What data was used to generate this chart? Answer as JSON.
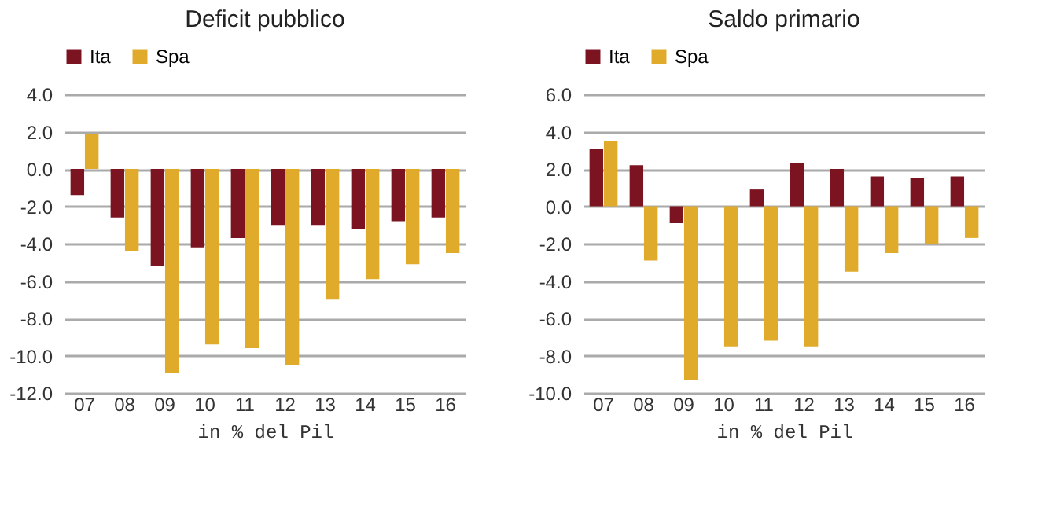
{
  "chart_data": [
    {
      "type": "bar",
      "title": "Deficit pubblico",
      "xlabel": "in % del Pil",
      "categories": [
        "07",
        "08",
        "09",
        "10",
        "11",
        "12",
        "13",
        "14",
        "15",
        "16"
      ],
      "series": [
        {
          "name": "Ita",
          "color": "#7b1420",
          "values": [
            -1.4,
            -2.6,
            -5.2,
            -4.2,
            -3.7,
            -3.0,
            -3.0,
            -3.2,
            -2.8,
            -2.6
          ]
        },
        {
          "name": "Spa",
          "color": "#e0aa2a",
          "values": [
            1.9,
            -4.4,
            -10.9,
            -9.4,
            -9.6,
            -10.5,
            -7.0,
            -5.9,
            -5.1,
            -4.5
          ]
        }
      ],
      "ylim": [
        -12,
        4
      ],
      "yticks": [
        {
          "value": -12,
          "label": "-12.0"
        },
        {
          "value": -10,
          "label": "-10.0"
        },
        {
          "value": -8,
          "label": "-8.0"
        },
        {
          "value": -6,
          "label": "-6.0"
        },
        {
          "value": -4,
          "label": "-4.0"
        },
        {
          "value": -2,
          "label": "-2.0"
        },
        {
          "value": 0,
          "label": "0.0"
        },
        {
          "value": 2,
          "label": "2.0"
        },
        {
          "value": 4,
          "label": "4.0"
        }
      ],
      "grid": "y",
      "legend": "top"
    },
    {
      "type": "bar",
      "title": "Saldo primario",
      "xlabel": "in % del Pil",
      "categories": [
        "07",
        "08",
        "09",
        "10",
        "11",
        "12",
        "13",
        "14",
        "15",
        "16"
      ],
      "series": [
        {
          "name": "Ita",
          "color": "#7b1420",
          "values": [
            3.1,
            2.2,
            -0.9,
            0,
            0.9,
            2.3,
            2.0,
            1.6,
            1.5,
            1.6
          ]
        },
        {
          "name": "Spa",
          "color": "#e0aa2a",
          "values": [
            3.5,
            -2.9,
            -9.3,
            -7.5,
            -7.2,
            -7.5,
            -3.5,
            -2.5,
            -2.0,
            -1.7
          ]
        }
      ],
      "ylim": [
        -10,
        6
      ],
      "yticks": [
        {
          "value": -10,
          "label": "-10.0"
        },
        {
          "value": -8,
          "label": "-8.0"
        },
        {
          "value": -6,
          "label": "-6.0"
        },
        {
          "value": -4,
          "label": "-4.0"
        },
        {
          "value": -2,
          "label": "-2.0"
        },
        {
          "value": 0,
          "label": "0.0"
        },
        {
          "value": 2,
          "label": "2.0"
        },
        {
          "value": 4,
          "label": "4.0"
        },
        {
          "value": 6,
          "label": "6.0"
        }
      ],
      "grid": "y",
      "legend": "top"
    }
  ]
}
